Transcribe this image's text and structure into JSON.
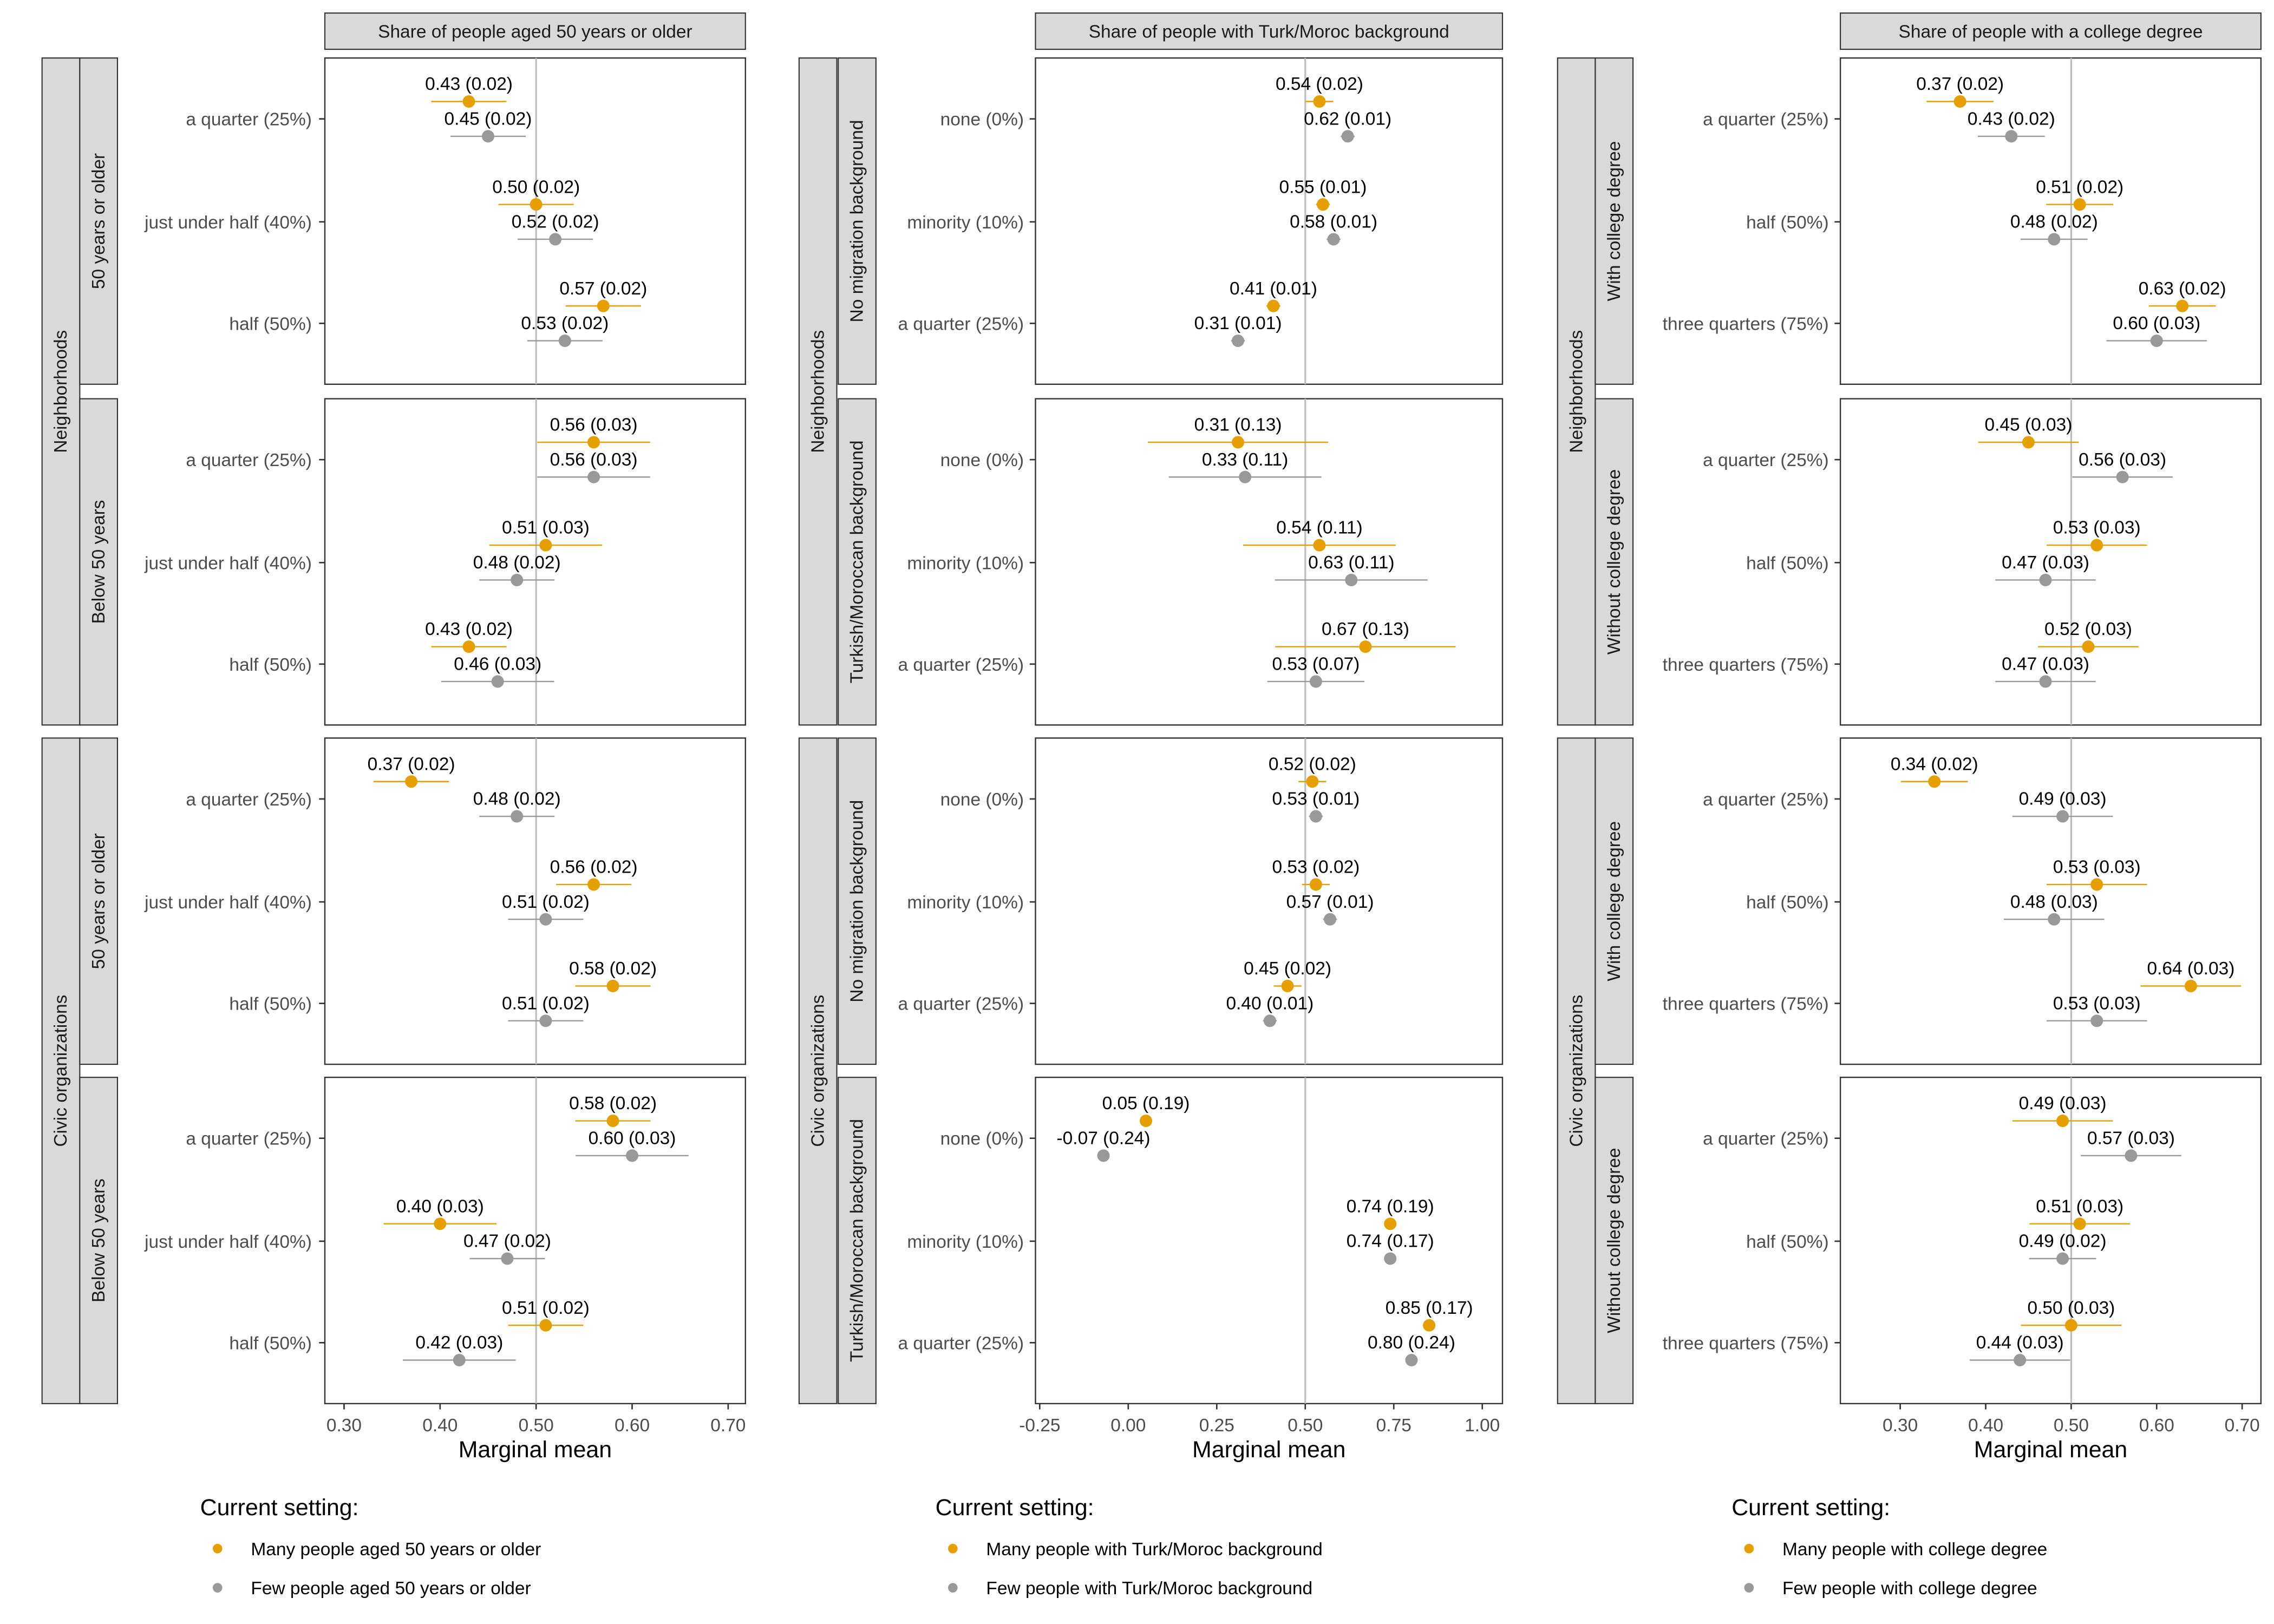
{
  "colors": {
    "current": "#E69F00",
    "few": "#999999",
    "strip": "#D9D9D9",
    "refline": "#BEBEBE"
  },
  "chart_data": [
    {
      "type": "dot-errorbar",
      "top_strip": "Share of people aged 50 years or older",
      "xlabel": "Marginal mean",
      "xticks": [
        0.3,
        0.4,
        0.5,
        0.6,
        0.7
      ],
      "xtick_labels": [
        "0.30",
        "0.40",
        "0.50",
        "0.60",
        "0.70"
      ],
      "xlim": [
        0.28,
        0.718
      ],
      "reference_line": 0.5,
      "levels": [
        "a quarter (25%)",
        "just under half (40%)",
        "half (50%)"
      ],
      "legend": {
        "title": "Current setting:",
        "items": [
          "Many people aged 50 years or older",
          "Few people aged 50 years or older"
        ]
      },
      "groups": [
        {
          "outer": "Neighborhoods",
          "panels": [
            {
              "inner": "50 years or older",
              "many": [
                [
                  0.43,
                  0.02
                ],
                [
                  0.5,
                  0.02
                ],
                [
                  0.57,
                  0.02
                ]
              ],
              "few": [
                [
                  0.45,
                  0.02
                ],
                [
                  0.52,
                  0.02
                ],
                [
                  0.53,
                  0.02
                ]
              ]
            },
            {
              "inner": "Below 50 years",
              "many": [
                [
                  0.56,
                  0.03
                ],
                [
                  0.51,
                  0.03
                ],
                [
                  0.43,
                  0.02
                ]
              ],
              "few": [
                [
                  0.56,
                  0.03
                ],
                [
                  0.48,
                  0.02
                ],
                [
                  0.46,
                  0.03
                ]
              ]
            }
          ]
        },
        {
          "outer": "Civic organizations",
          "panels": [
            {
              "inner": "50 years or older",
              "many": [
                [
                  0.37,
                  0.02
                ],
                [
                  0.56,
                  0.02
                ],
                [
                  0.58,
                  0.02
                ]
              ],
              "few": [
                [
                  0.48,
                  0.02
                ],
                [
                  0.51,
                  0.02
                ],
                [
                  0.51,
                  0.02
                ]
              ]
            },
            {
              "inner": "Below 50 years",
              "many": [
                [
                  0.58,
                  0.02
                ],
                [
                  0.4,
                  0.03
                ],
                [
                  0.51,
                  0.02
                ]
              ],
              "few": [
                [
                  0.6,
                  0.03
                ],
                [
                  0.47,
                  0.02
                ],
                [
                  0.42,
                  0.03
                ]
              ]
            }
          ]
        }
      ]
    },
    {
      "type": "dot-errorbar",
      "top_strip": "Share of people with Turk/Moroc background",
      "xlabel": "Marginal mean",
      "xticks": [
        -0.25,
        0.0,
        0.25,
        0.5,
        0.75,
        1.0
      ],
      "xtick_labels": [
        "-0.25",
        "0.00",
        "0.25",
        "0.50",
        "0.75",
        "1.00"
      ],
      "xlim": [
        -0.262,
        1.057
      ],
      "reference_line": 0.5,
      "levels": [
        "none (0%)",
        "minority (10%)",
        "a quarter (25%)"
      ],
      "legend": {
        "title": "Current setting:",
        "items": [
          "Many people with Turk/Moroc background",
          "Few people with Turk/Moroc background"
        ]
      },
      "groups": [
        {
          "outer": "Neighborhoods",
          "panels": [
            {
              "inner": "No migration background",
              "many": [
                [
                  0.54,
                  0.02
                ],
                [
                  0.55,
                  0.01
                ],
                [
                  0.41,
                  0.01
                ]
              ],
              "few": [
                [
                  0.62,
                  0.01
                ],
                [
                  0.58,
                  0.01
                ],
                [
                  0.31,
                  0.01
                ]
              ]
            },
            {
              "inner": "Turkish/Moroccan background",
              "many": [
                [
                  0.31,
                  0.13
                ],
                [
                  0.54,
                  0.11
                ],
                [
                  0.67,
                  0.13
                ]
              ],
              "few": [
                [
                  0.33,
                  0.11
                ],
                [
                  0.63,
                  0.11
                ],
                [
                  0.53,
                  0.07
                ]
              ]
            }
          ]
        },
        {
          "outer": "Civic organizations",
          "panels": [
            {
              "inner": "No migration background",
              "many": [
                [
                  0.52,
                  0.02
                ],
                [
                  0.53,
                  0.02
                ],
                [
                  0.45,
                  0.02
                ]
              ],
              "few": [
                [
                  0.53,
                  0.01
                ],
                [
                  0.57,
                  0.01
                ],
                [
                  0.4,
                  0.01
                ]
              ]
            },
            {
              "inner": "Turkish/Moroccan background",
              "many": [
                [
                  0.05,
                  0.19
                ],
                [
                  0.74,
                  0.19
                ],
                [
                  0.85,
                  0.17
                ]
              ],
              "few": [
                [
                  -0.07,
                  0.24
                ],
                [
                  0.74,
                  0.17
                ],
                [
                  0.8,
                  0.24
                ]
              ]
            }
          ]
        }
      ]
    },
    {
      "type": "dot-errorbar",
      "top_strip": "Share of people with a college degree",
      "xlabel": "Marginal mean",
      "xticks": [
        0.3,
        0.4,
        0.5,
        0.6,
        0.7
      ],
      "xtick_labels": [
        "0.30",
        "0.40",
        "0.50",
        "0.60",
        "0.70"
      ],
      "xlim": [
        0.23,
        0.722
      ],
      "reference_line": 0.5,
      "levels": [
        "a quarter (25%)",
        "half (50%)",
        "three quarters (75%)"
      ],
      "legend": {
        "title": "Current setting:",
        "items": [
          "Many people with college degree",
          "Few people with college degree"
        ]
      },
      "groups": [
        {
          "outer": "Neighborhoods",
          "panels": [
            {
              "inner": "With college degree",
              "many": [
                [
                  0.37,
                  0.02
                ],
                [
                  0.51,
                  0.02
                ],
                [
                  0.63,
                  0.02
                ]
              ],
              "few": [
                [
                  0.43,
                  0.02
                ],
                [
                  0.48,
                  0.02
                ],
                [
                  0.6,
                  0.03
                ]
              ]
            },
            {
              "inner": "Without college degree",
              "many": [
                [
                  0.45,
                  0.03
                ],
                [
                  0.53,
                  0.03
                ],
                [
                  0.52,
                  0.03
                ]
              ],
              "few": [
                [
                  0.56,
                  0.03
                ],
                [
                  0.47,
                  0.03
                ],
                [
                  0.47,
                  0.03
                ]
              ]
            }
          ]
        },
        {
          "outer": "Civic organizations",
          "panels": [
            {
              "inner": "With college degree",
              "many": [
                [
                  0.34,
                  0.02
                ],
                [
                  0.53,
                  0.03
                ],
                [
                  0.64,
                  0.03
                ]
              ],
              "few": [
                [
                  0.49,
                  0.03
                ],
                [
                  0.48,
                  0.03
                ],
                [
                  0.53,
                  0.03
                ]
              ]
            },
            {
              "inner": "Without college degree",
              "many": [
                [
                  0.49,
                  0.03
                ],
                [
                  0.51,
                  0.03
                ],
                [
                  0.5,
                  0.03
                ]
              ],
              "few": [
                [
                  0.57,
                  0.03
                ],
                [
                  0.49,
                  0.02
                ],
                [
                  0.44,
                  0.03
                ]
              ]
            }
          ]
        }
      ]
    }
  ]
}
